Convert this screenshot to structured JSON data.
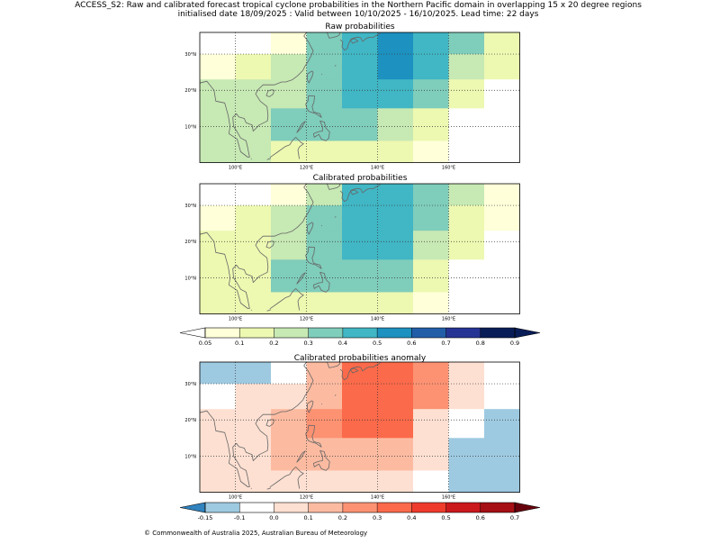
{
  "figure": {
    "title_line1": "ACCESS_S2: Raw and calibrated forecast tropical cyclone probabilities in the Northern Pacific domain in overlapping 15 x 20 degree regions",
    "title_line2": "initialised date 18/09/2025 :  Valid between 10/10/2025 - 16/10/2025. Lead time: 22 days",
    "footer": "© Commonwealth of Australia 2025, Australian Bureau of Meteorology"
  },
  "map": {
    "lon_range": [
      90,
      180
    ],
    "lat_range": [
      0,
      36
    ],
    "lon_ticks": [
      100,
      120,
      140,
      160
    ],
    "lon_tick_labels": [
      "100°E",
      "120°E",
      "140°E",
      "160°E"
    ],
    "lat_ticks": [
      10,
      20,
      30
    ],
    "lat_tick_labels": [
      "10°N",
      "20°N",
      "30°N"
    ],
    "cell_lon_edges": [
      90,
      100,
      110,
      120,
      130,
      140,
      150,
      160,
      170,
      180
    ],
    "cell_lat_edges": [
      0,
      6,
      15,
      23,
      30,
      36
    ],
    "grid_lines": true
  },
  "colors": {
    "prob_under": "#ffffff",
    "prob_levels": [
      "#ffffd9",
      "#edf8b1",
      "#c7e9b4",
      "#7fcdbb",
      "#41b6c4",
      "#1d91c0",
      "#225ea8",
      "#253494",
      "#081d58"
    ],
    "prob_over": "#081d58",
    "anom_under": "#3182bd",
    "anom_levels": [
      "#3182bd",
      "#9ecae1",
      "#ffffff",
      "#fee0d2",
      "#fcbba1",
      "#fc9272",
      "#fb6a4a",
      "#ef3b2c",
      "#cb181d",
      "#a50f15"
    ],
    "anom_over": "#67000d",
    "coast": "#666666"
  },
  "chart_data": [
    {
      "type": "heatmap",
      "name": "raw",
      "title": "Raw probabilities",
      "note": "rows listed north to south (lat bands 30-36, 23-30, 15-23, 6-15, 0-6); columns west to east in 10 degree steps from 90E",
      "values": [
        [
          0.02,
          0.02,
          0.08,
          0.35,
          0.45,
          0.55,
          0.45,
          0.32,
          0.15
        ],
        [
          0.08,
          0.12,
          0.22,
          0.32,
          0.45,
          0.55,
          0.45,
          0.22,
          0.12
        ],
        [
          0.22,
          0.22,
          0.28,
          0.35,
          0.45,
          0.45,
          0.32,
          0.15,
          0.02
        ],
        [
          0.22,
          0.22,
          0.32,
          0.32,
          0.32,
          0.22,
          0.15,
          0.02,
          0.02
        ],
        [
          0.22,
          0.22,
          0.15,
          0.12,
          0.12,
          0.12,
          0.08,
          0.02,
          0.02
        ]
      ]
    },
    {
      "type": "heatmap",
      "name": "calibrated",
      "title": "Calibrated probabilities",
      "values": [
        [
          0.02,
          0.02,
          0.08,
          0.25,
          0.45,
          0.45,
          0.35,
          0.22,
          0.08
        ],
        [
          0.08,
          0.12,
          0.22,
          0.32,
          0.45,
          0.45,
          0.35,
          0.15,
          0.08
        ],
        [
          0.12,
          0.15,
          0.28,
          0.35,
          0.45,
          0.45,
          0.22,
          0.12,
          0.02
        ],
        [
          0.12,
          0.15,
          0.32,
          0.32,
          0.32,
          0.32,
          0.15,
          0.02,
          0.02
        ],
        [
          0.12,
          0.12,
          0.15,
          0.12,
          0.12,
          0.12,
          0.08,
          0.02,
          0.02
        ]
      ]
    },
    {
      "type": "heatmap",
      "name": "anomaly",
      "title": "Calibrated probabilities anomaly",
      "values": [
        [
          -0.12,
          -0.12,
          -0.08,
          0.15,
          0.32,
          0.32,
          0.25,
          0.05,
          -0.08
        ],
        [
          -0.08,
          0.0,
          0.05,
          0.15,
          0.32,
          0.32,
          0.25,
          0.0,
          -0.08
        ],
        [
          0.0,
          0.05,
          0.15,
          0.25,
          0.32,
          0.32,
          0.05,
          -0.08,
          -0.12
        ],
        [
          0.0,
          0.05,
          0.15,
          0.15,
          0.15,
          0.15,
          0.0,
          -0.12,
          -0.12
        ],
        [
          0.0,
          0.05,
          0.05,
          0.0,
          0.0,
          0.0,
          -0.08,
          -0.12,
          -0.12
        ]
      ]
    },
    {
      "type": "colorbar",
      "name": "probability-colorbar",
      "bounds": [
        0.05,
        0.1,
        0.2,
        0.3,
        0.4,
        0.5,
        0.6,
        0.7,
        0.8,
        0.9
      ],
      "labels": [
        "0.05",
        "0.1",
        "0.2",
        "0.3",
        "0.4",
        "0.5",
        "0.6",
        "0.7",
        "0.8",
        "0.9"
      ],
      "extend": "both"
    },
    {
      "type": "colorbar",
      "name": "anomaly-colorbar",
      "bounds": [
        -0.15,
        -0.1,
        0.0,
        0.1,
        0.2,
        0.3,
        0.4,
        0.5,
        0.6,
        0.7
      ],
      "labels": [
        "-0.15",
        "-0.1",
        "0.0",
        "0.1",
        "0.2",
        "0.3",
        "0.4",
        "0.5",
        "0.6",
        "0.7"
      ],
      "extend": "both"
    }
  ]
}
